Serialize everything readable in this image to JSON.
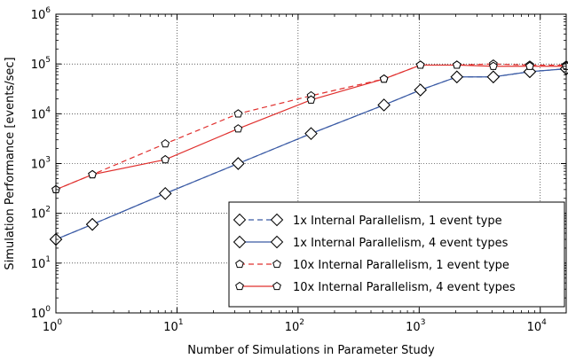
{
  "chart_data": {
    "type": "line",
    "title": "",
    "xlabel": "Number of Simulations in Parameter Study",
    "ylabel": "Simulation Performance [events/sec]",
    "xscale": "log",
    "yscale": "log",
    "xlim": [
      1,
      16384
    ],
    "ylim": [
      1,
      1000000
    ],
    "grid": true,
    "legend_position": "lower-right",
    "x_tick_labels": [
      {
        "value": 1,
        "base": "10",
        "exp": "0"
      },
      {
        "value": 10,
        "base": "10",
        "exp": "1"
      },
      {
        "value": 100,
        "base": "10",
        "exp": "2"
      },
      {
        "value": 1000,
        "base": "10",
        "exp": "3"
      },
      {
        "value": 10000,
        "base": "10",
        "exp": "4"
      }
    ],
    "y_tick_labels": [
      {
        "value": 1,
        "base": "10",
        "exp": "0"
      },
      {
        "value": 10,
        "base": "10",
        "exp": "1"
      },
      {
        "value": 100,
        "base": "10",
        "exp": "2"
      },
      {
        "value": 1000,
        "base": "10",
        "exp": "3"
      },
      {
        "value": 10000,
        "base": "10",
        "exp": "4"
      },
      {
        "value": 100000,
        "base": "10",
        "exp": "5"
      },
      {
        "value": 1000000,
        "base": "10",
        "exp": "6"
      }
    ],
    "series": [
      {
        "name": "1x Internal Parallelism, 1 event type",
        "color": "#3b5ba5",
        "line": "dashed",
        "marker": "diamond",
        "x": [
          1,
          2,
          8,
          32,
          128,
          512,
          1024,
          2048,
          4096,
          8192,
          16384
        ],
        "y": [
          30,
          60,
          250,
          1000,
          4000,
          15000,
          30000,
          55000,
          55000,
          70000,
          80000
        ]
      },
      {
        "name": "1x Internal Parallelism, 4 event types",
        "color": "#3b5ba5",
        "line": "solid",
        "marker": "diamond",
        "x": [
          1,
          2,
          8,
          32,
          128,
          512,
          1024,
          2048,
          4096,
          8192,
          16384
        ],
        "y": [
          30,
          60,
          250,
          1000,
          4000,
          15000,
          30000,
          55000,
          55000,
          70000,
          80000
        ]
      },
      {
        "name": "10x Internal Parallelism, 1 event type",
        "color": "#e0302e",
        "line": "dashed",
        "marker": "pentagon",
        "x": [
          1,
          2,
          8,
          32,
          128,
          512,
          1024,
          2048,
          4096,
          8192,
          16384
        ],
        "y": [
          300,
          600,
          2500,
          10000,
          23000,
          50000,
          95000,
          95000,
          100000,
          95000,
          95000
        ]
      },
      {
        "name": "10x Internal Parallelism, 4 event types",
        "color": "#e0302e",
        "line": "solid",
        "marker": "pentagon",
        "x": [
          1,
          2,
          8,
          32,
          128,
          512,
          1024,
          2048,
          4096,
          8192,
          16384
        ],
        "y": [
          300,
          600,
          1200,
          5000,
          19000,
          50000,
          95000,
          95000,
          90000,
          90000,
          90000
        ]
      }
    ]
  }
}
